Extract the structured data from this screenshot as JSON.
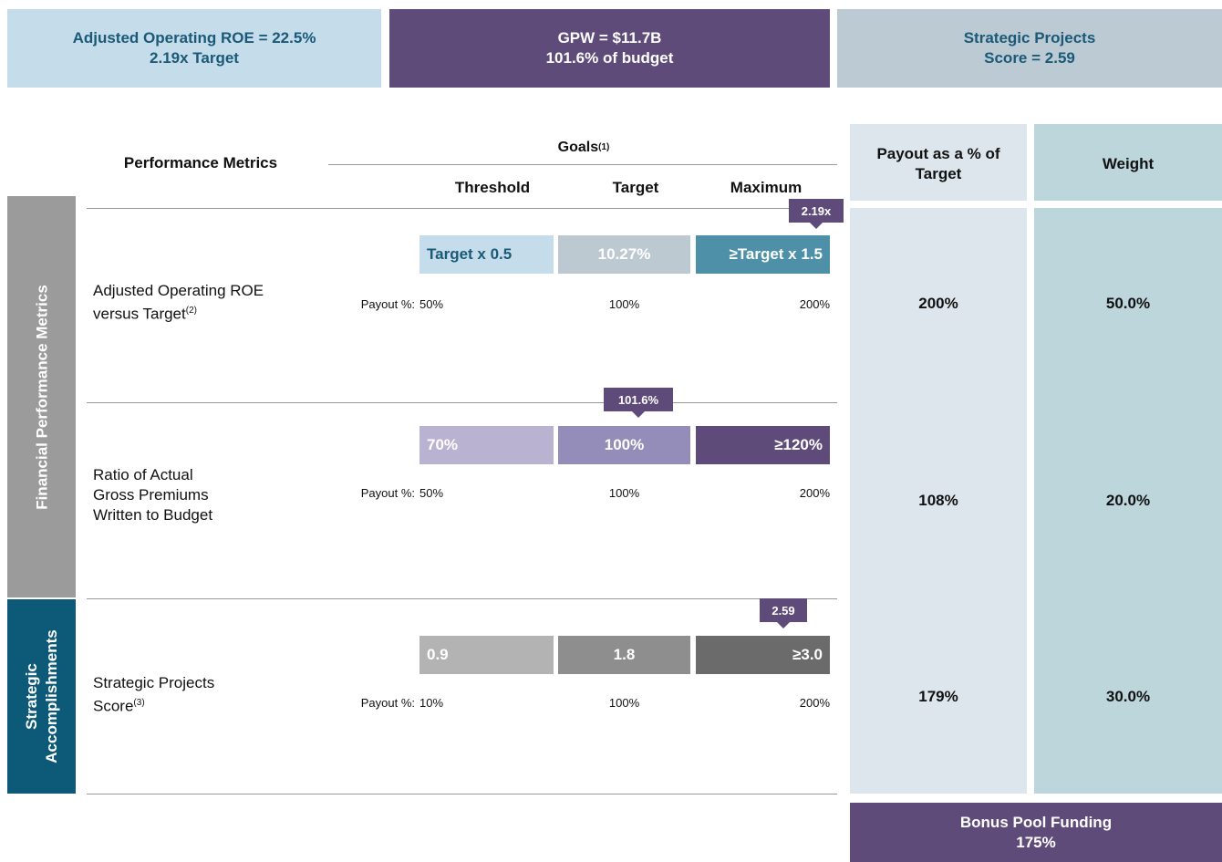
{
  "summary": [
    {
      "lines": [
        "Adjusted Operating ROE = 22.5%",
        "2.19x Target"
      ]
    },
    {
      "lines": [
        "GPW = $11.7B",
        "101.6% of budget"
      ]
    },
    {
      "lines": [
        "Strategic Projects",
        "Score = 2.59"
      ]
    }
  ],
  "table": {
    "metric_header": "Performance Metrics",
    "goals_header": "Goals",
    "goals_note": "(1)",
    "levels": [
      "Threshold",
      "Target",
      "Maximum"
    ],
    "payout_header": [
      "Payout as a % of",
      "Target"
    ],
    "weight_header": "Weight",
    "payout_label": "Payout %:",
    "groups": [
      "Financial Performance Metrics",
      "Strategic Accomplishments"
    ],
    "rows": [
      {
        "label": [
          "Adjusted Operating ROE",
          "versus Target"
        ],
        "note": "(2)",
        "goals": [
          "Target x 0.5",
          "10.27%",
          "≥Target x 1.5"
        ],
        "payouts": [
          "50%",
          "100%",
          "200%"
        ],
        "actual": "2.19x",
        "payout": "200%",
        "weight": "50.0%"
      },
      {
        "label": [
          "Ratio of Actual",
          "Gross Premiums",
          "Written to Budget"
        ],
        "goals": [
          "70%",
          "100%",
          "≥120%"
        ],
        "payouts": [
          "50%",
          "100%",
          "200%"
        ],
        "actual": "101.6%",
        "payout": "108%",
        "weight": "20.0%"
      },
      {
        "label": [
          "Strategic Projects",
          "Score"
        ],
        "note": "(3)",
        "goals": [
          "0.9",
          "1.8",
          "≥3.0"
        ],
        "payouts": [
          "10%",
          "100%",
          "200%"
        ],
        "actual": "2.59",
        "payout": "179%",
        "weight": "30.0%"
      }
    ]
  },
  "bonus": [
    "Bonus Pool Funding",
    "175%"
  ]
}
